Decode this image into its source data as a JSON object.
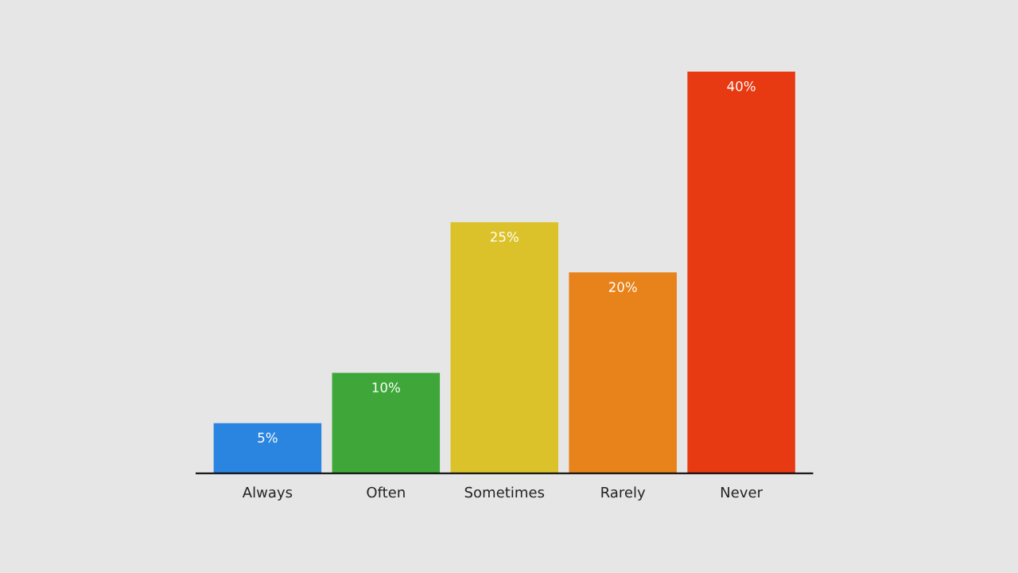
{
  "chart_data": {
    "type": "bar",
    "categories": [
      "Always",
      "Often",
      "Sometimes",
      "Rarely",
      "Never"
    ],
    "values": [
      5,
      10,
      25,
      20,
      40
    ],
    "value_labels": [
      "5%",
      "10%",
      "25%",
      "20%",
      "40%"
    ],
    "colors": [
      "#2a85e0",
      "#3fa73a",
      "#dcc22a",
      "#e8821a",
      "#e83a12"
    ],
    "grid": false,
    "legend": false
  }
}
